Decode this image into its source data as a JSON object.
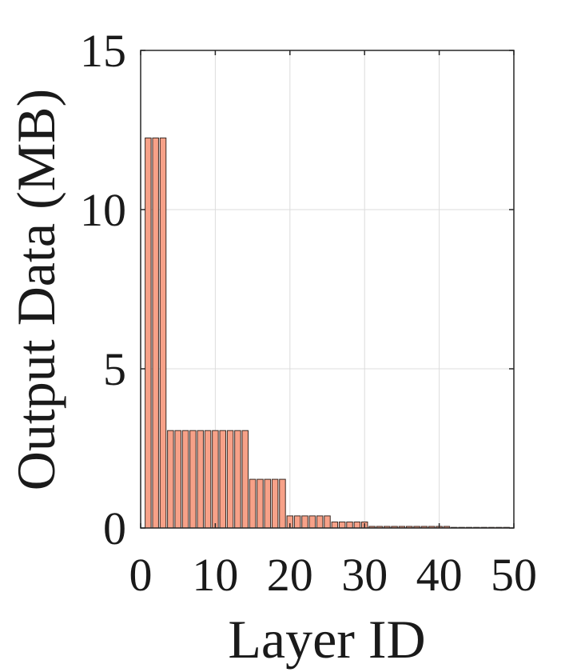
{
  "chart_data": {
    "type": "bar",
    "title": "",
    "xlabel": "Layer ID",
    "ylabel": "Output Data (MB)",
    "xlim": [
      0,
      50
    ],
    "ylim": [
      0,
      15
    ],
    "xticks": [
      0,
      10,
      20,
      30,
      40,
      50
    ],
    "yticks": [
      0,
      5,
      10,
      15
    ],
    "xtick_labels": [
      "0",
      "10",
      "20",
      "30",
      "40",
      "50"
    ],
    "ytick_labels": [
      "0",
      "5",
      "10",
      "15"
    ],
    "grid": true,
    "bar_color": "#f7a188",
    "bar_edge_color": "#3a2a24",
    "x": [
      1,
      2,
      3,
      4,
      5,
      6,
      7,
      8,
      9,
      10,
      11,
      12,
      13,
      14,
      15,
      16,
      17,
      18,
      19,
      20,
      21,
      22,
      23,
      24,
      25,
      26,
      27,
      28,
      29,
      30,
      31,
      32,
      33,
      34,
      35,
      36,
      37,
      38,
      39,
      40,
      41,
      42,
      43,
      44,
      45,
      46,
      47,
      48,
      49
    ],
    "values": [
      12.25,
      12.25,
      12.25,
      3.06,
      3.06,
      3.06,
      3.06,
      3.06,
      3.06,
      3.06,
      3.06,
      3.06,
      3.06,
      3.06,
      1.53,
      1.53,
      1.53,
      1.53,
      1.53,
      0.38,
      0.38,
      0.38,
      0.38,
      0.38,
      0.38,
      0.19,
      0.19,
      0.19,
      0.19,
      0.19,
      0.05,
      0.05,
      0.05,
      0.05,
      0.05,
      0.05,
      0.05,
      0.05,
      0.05,
      0.05,
      0.05,
      0.02,
      0.02,
      0.02,
      0.02,
      0.02,
      0.02,
      0.02,
      0.02
    ]
  }
}
